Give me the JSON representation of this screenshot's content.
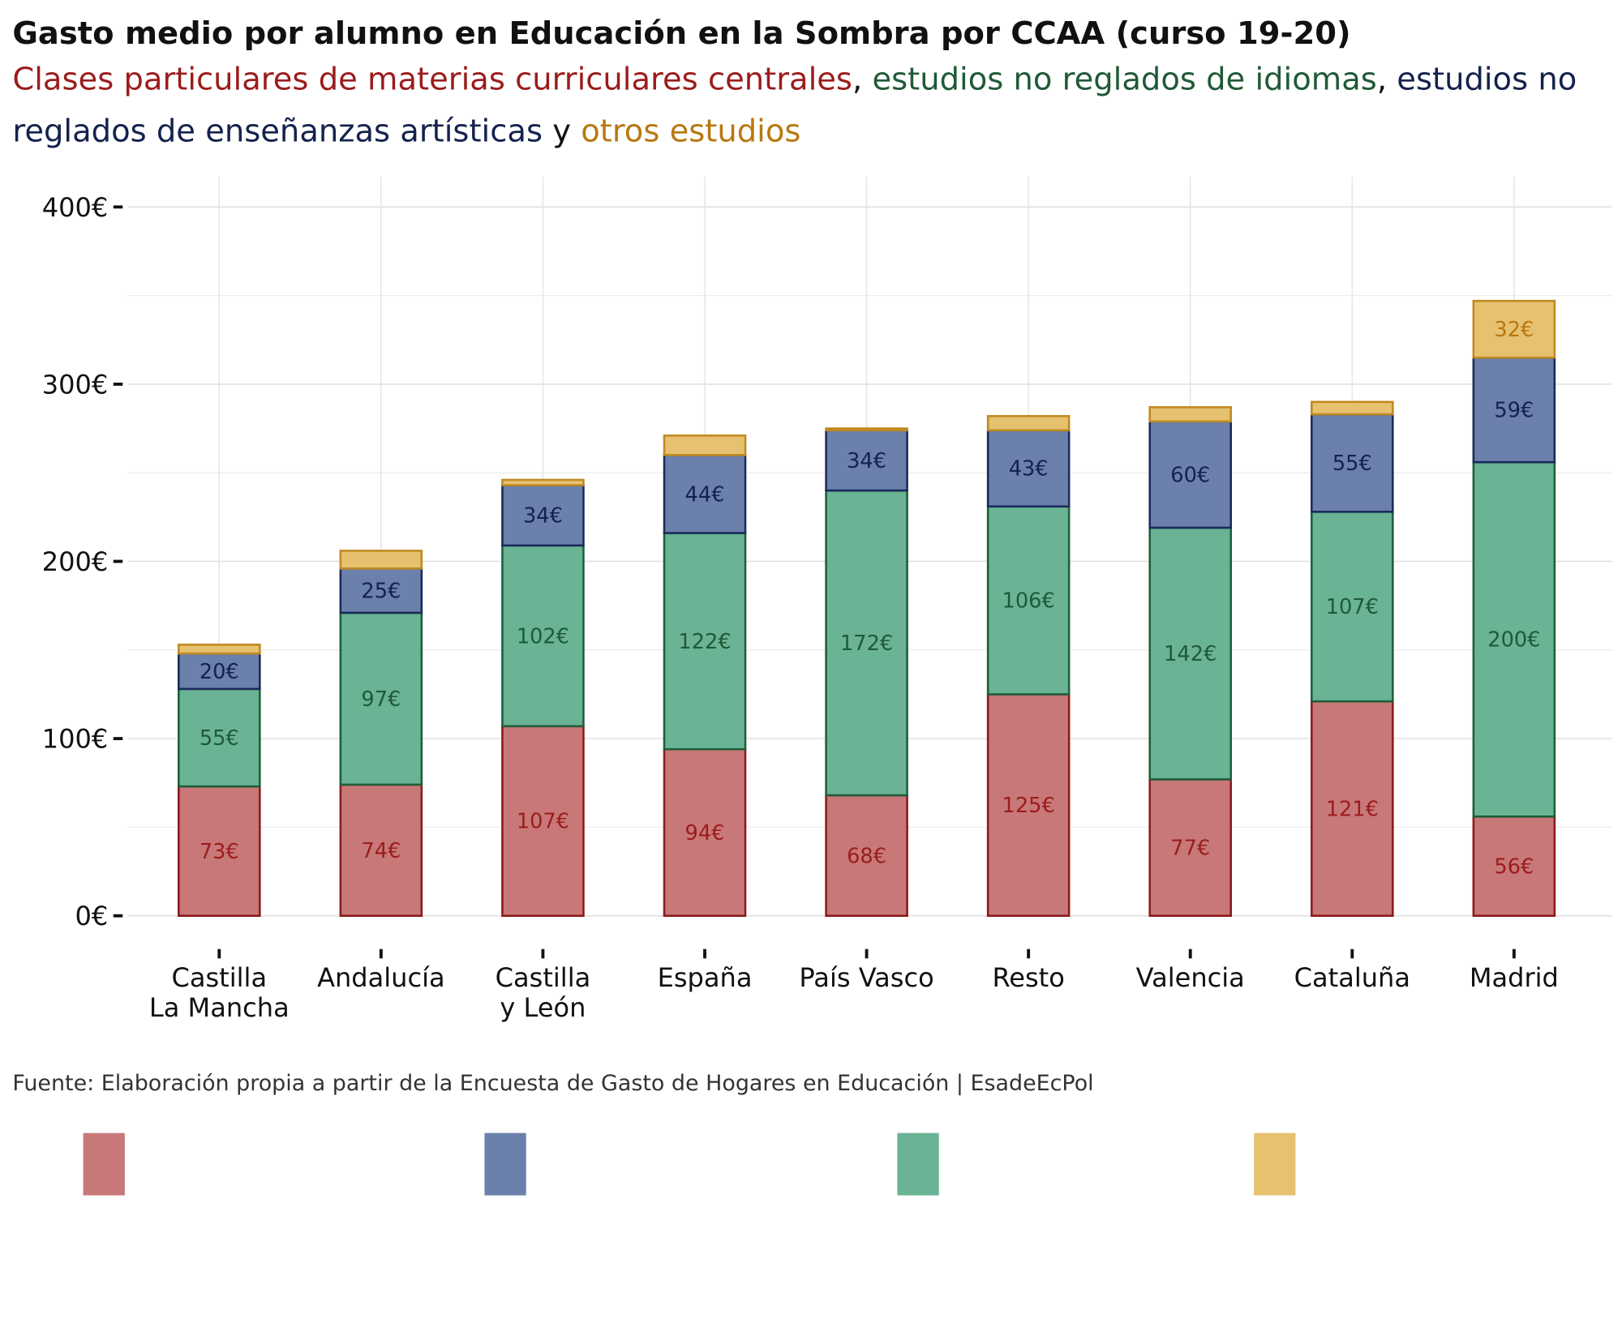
{
  "chart_data": {
    "type": "stacked_bar",
    "title": "Gasto medio por alumno en Educación en la Sombra por CCAA (curso 19-20)",
    "subtitle_separators": [
      ", ",
      ", ",
      " y "
    ],
    "source": "Fuente: Elaboración propia a partir de la Encuesta de Gasto de Hogares en Educación | EsadeEcPol",
    "categories": [
      "Castilla\nLa Mancha",
      "Andalucía",
      "Castilla\ny León",
      "España",
      "País Vasco",
      "Resto",
      "Valencia",
      "Cataluña",
      "Madrid"
    ],
    "series": [
      {
        "name": "Clases particulares de materias curriculares centrales",
        "color": "#c87878",
        "edge_color": "#8b1a1a",
        "label_color": "#9b1c1c",
        "values": [
          73,
          74,
          107,
          94,
          68,
          125,
          77,
          121,
          56
        ],
        "value_labels": [
          "73€",
          "74€",
          "107€",
          "94€",
          "68€",
          "125€",
          "77€",
          "121€",
          "56€"
        ]
      },
      {
        "name": "estudios no reglados de idiomas",
        "color": "#6ab394",
        "edge_color": "#1e5e3a",
        "label_color": "#1f5a36",
        "values": [
          55,
          97,
          102,
          122,
          172,
          106,
          142,
          107,
          200
        ],
        "value_labels": [
          "55€",
          "97€",
          "102€",
          "122€",
          "172€",
          "106€",
          "142€",
          "107€",
          "200€"
        ]
      },
      {
        "name": "estudios no reglados de enseñanzas artísticas",
        "color": "#6b80ab",
        "edge_color": "#1a2a5a",
        "label_color": "#14224d",
        "values": [
          20,
          25,
          34,
          44,
          34,
          43,
          60,
          55,
          59
        ],
        "value_labels": [
          "20€",
          "25€",
          "34€",
          "44€",
          "34€",
          "43€",
          "60€",
          "55€",
          "59€"
        ]
      },
      {
        "name": "otros estudios",
        "color": "#e5c170",
        "edge_color": "#c08a20",
        "label_color": "#b8780f",
        "values": [
          5,
          10,
          3,
          11,
          1,
          8,
          8,
          7,
          32
        ],
        "value_labels": [
          null,
          null,
          null,
          null,
          null,
          null,
          null,
          null,
          "32€"
        ]
      }
    ],
    "ylim": [
      0,
      417
    ],
    "yticks": [
      {
        "value": 0,
        "label": "0€"
      },
      {
        "value": 100,
        "label": "100€"
      },
      {
        "value": 200,
        "label": "200€"
      },
      {
        "value": 300,
        "label": "300€"
      },
      {
        "value": 400,
        "label": "400€"
      }
    ],
    "y_minor_gridlines": [
      50,
      150,
      250,
      350
    ],
    "grid": true,
    "legend_order": [
      0,
      2,
      1,
      3
    ]
  }
}
